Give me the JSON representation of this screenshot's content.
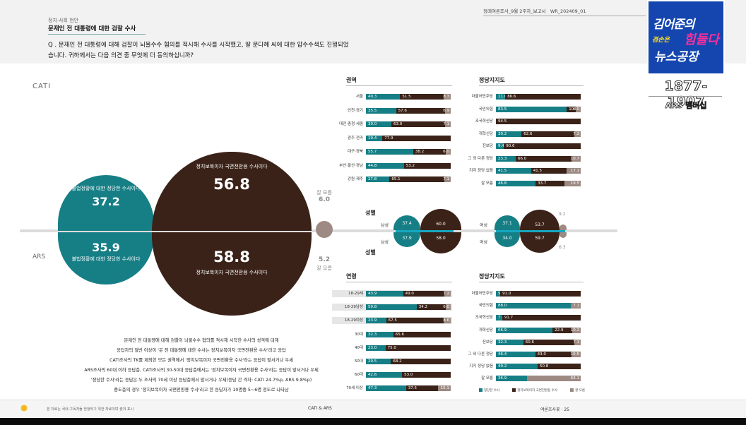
{
  "header": {
    "category": "정치·사회 현안",
    "title": "문재인 전 대통령에 대한 검찰 수사",
    "report": "정례여론조사_9월 2주차_보고서",
    "code": "WR_202409_01"
  },
  "question": "Q . 문재인 전 대통령에 대해 검찰이 뇌물수수 혐의를 적시해 수사를 시작했고, 딸 문다혜 씨에 대한 압수수색도 진행되었습니다. 귀하께서는 다음 의견 중 무엇에 더 동의하십니까?",
  "methods": {
    "cati": "CATI",
    "ars": "ARS"
  },
  "main": {
    "cati_teal_label": "불법정황에 대한 정당한 수사이다",
    "cati_teal_value": "37.2",
    "cati_brown_label": "정치보복이자 국면전환용 수사이다",
    "cati_brown_value": "56.8",
    "cati_dk_label": "잘 모름",
    "cati_dk_value": "6.0",
    "ars_teal_label": "불법정황에 대한 정당한 수사이다",
    "ars_teal_value": "35.9",
    "ars_brown_label": "정치보복이자 국면전환용 수사이다",
    "ars_brown_value": "58.8",
    "ars_dk_label": "잘 모름",
    "ars_dk_value": "5.2"
  },
  "sections": {
    "region": "권역",
    "party_top": "정당지지도",
    "gender_top": "성별",
    "gender_bottom": "성별",
    "age": "연령",
    "party_bottom": "정당지지도"
  },
  "region_rows": [
    {
      "label": "서울",
      "t": "40.3",
      "b": "51.5",
      "g": "8.3"
    },
    {
      "label": "인천·경기",
      "t": "35.5",
      "b": "57.6",
      "g": "6.9"
    },
    {
      "label": "대전·충청·세종",
      "t": "30.0",
      "b": "63.0",
      "g": "7.1"
    },
    {
      "label": "광주·전라",
      "t": "19.4",
      "b": "77.9",
      "g": ""
    },
    {
      "label": "대구·경북",
      "t": "55.7",
      "b": "38.2",
      "g": "6.0"
    },
    {
      "label": "부산·울산·경남",
      "t": "44.8",
      "b": "53.2",
      "g": ""
    },
    {
      "label": "강원·제주",
      "t": "27.8",
      "b": "65.1",
      "g": "7.1"
    }
  ],
  "party_top_rows": [
    {
      "label": "더불어민주당",
      "t": "11.0",
      "b": "86.6",
      "g": ""
    },
    {
      "label": "국민의힘",
      "t": "83.5",
      "b": "10.5",
      "g": "6.0"
    },
    {
      "label": "조국혁신당",
      "t": "",
      "b": "94.5",
      "g": ""
    },
    {
      "label": "개혁신당",
      "t": "30.2",
      "b": "62.6",
      "g": "7.2"
    },
    {
      "label": "진보당",
      "t": "9.4",
      "b": "90.6",
      "g": ""
    },
    {
      "label": "그 외 다른 정당",
      "t": "23.3",
      "b": "66.0",
      "g": "10.7"
    },
    {
      "label": "지지 정당 없음",
      "t": "41.5",
      "b": "41.5",
      "g": "17.1"
    },
    {
      "label": "잘 모름",
      "t": "46.8",
      "b": "33.7",
      "g": "19.5"
    }
  ],
  "gender": {
    "male_label": "남성",
    "female_label": "여성",
    "cati_male_t": "37.4",
    "cati_male_b": "60.0",
    "ars_male_t": "37.9",
    "ars_male_b": "58.0",
    "cati_female_t": "37.1",
    "cati_female_b": "53.7",
    "cati_female_g": "9.2",
    "ars_female_t": "34.0",
    "ars_female_b": "59.7",
    "ars_female_g": "6.3"
  },
  "age_rows": [
    {
      "label": "18-29세",
      "t": "43.9",
      "b": "49.0",
      "g": "7.2"
    },
    {
      "label": "18-29남성",
      "t": "59.8",
      "b": "34.2",
      "g": "6.0"
    },
    {
      "label": "18-29여성",
      "t": "23.9",
      "b": "67.5",
      "g": "8.6"
    },
    {
      "label": "30대",
      "t": "32.3",
      "b": "65.6",
      "g": ""
    },
    {
      "label": "40대",
      "t": "23.0",
      "b": "75.0",
      "g": ""
    },
    {
      "label": "50대",
      "t": "29.5",
      "b": "68.2",
      "g": ""
    },
    {
      "label": "60대",
      "t": "42.6",
      "b": "53.0",
      "g": ""
    },
    {
      "label": "70세 이상",
      "t": "47.3",
      "b": "37.5",
      "g": "15.1"
    }
  ],
  "party_bottom_rows": [
    {
      "label": "더불어민주당",
      "t": "5.1",
      "b": "91.0",
      "g": ""
    },
    {
      "label": "국민의힘",
      "t": "88.0",
      "b": "",
      "g": "7.1"
    },
    {
      "label": "조국혁신당",
      "t": "7.4",
      "b": "91.7",
      "g": ""
    },
    {
      "label": "개혁신당",
      "t": "66.9",
      "b": "22.9",
      "g": "10.2"
    },
    {
      "label": "진보당",
      "t": "32.3",
      "b": "60.6",
      "g": "7.1"
    },
    {
      "label": "그 외 다른 정당",
      "t": "46.4",
      "b": "43.0",
      "g": "10.5"
    },
    {
      "label": "지지 정당 없음",
      "t": "49.2",
      "b": "50.8",
      "g": ""
    },
    {
      "label": "잘 모름",
      "t": "36.9",
      "b": "",
      "g": "63.1"
    }
  ],
  "summary": [
    "문재인 전 대통령에 대해 검찰이 뇌물수수 혐의를 적시해 시작한 수사의 성격에 대해",
    "응답자의 절반 이상이 '문 전 대통령에 대한 수사는 정치보복이자 국면전환용 수사'라고 응답",
    "CATI조사의 TK를 제외한 모든 권역에서 '정치보복이자 국면전환용 수사'라는 응답이 앞서거나 우세",
    "ARS조사의 60대 이하 응답층, CATI조사의 30-50대 응답층에서는 '정치보복이자 국면전환용 수사'라는 응답이 앞서거나 우세",
    "'정당한 수사'라는 응답은 두 조사의 70세 이상 응답층에서 앞서거나 우세(응답 간 격차: CATI 24.7%p, ARS 9.8%p)",
    "중도층의 경우 '정치보복이자 국면전환용 수사'라고 한 응답자가 10명중 5~6명 정도로 나타남"
  ],
  "legend": {
    "teal": "정당한 수사",
    "brown": "정치보복이자 국면전환용 수사",
    "gray": "잘 모름"
  },
  "footer": {
    "left": "본 자료는 국내 구독자들 한정하기 위한 자료이며 출처 표시",
    "center": "CATI & ARS",
    "right": "여론조사꽃 · 25"
  },
  "overlay": {
    "logo_line1": "김어준의",
    "logo_line2": "겸손은",
    "logo_line3": "힘들다",
    "logo_line4": "뉴스공장",
    "phone": "1877-1907",
    "member": "ARS 멤버십"
  },
  "colors": {
    "teal": "#167f86",
    "brown": "#3a2218",
    "gray": "#9c8a83"
  }
}
